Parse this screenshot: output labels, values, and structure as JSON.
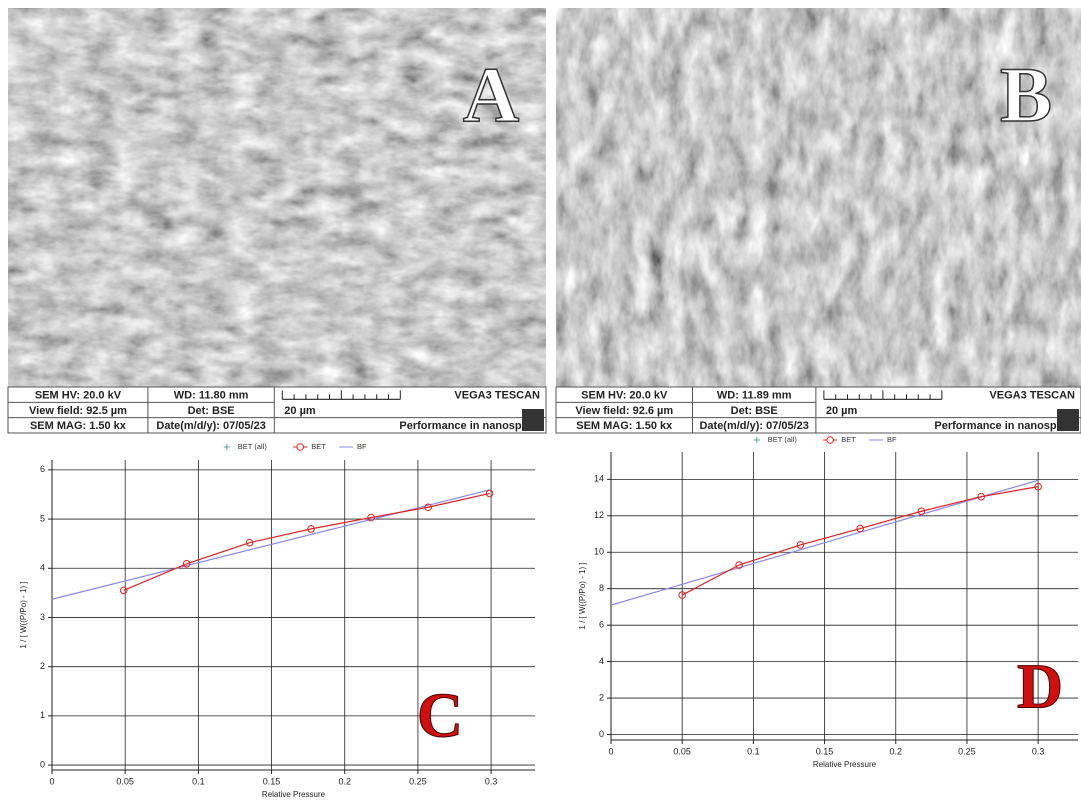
{
  "panels": [
    {
      "label": "A",
      "info": [
        [
          "SEM HV: 20.0 kV",
          "WD: 11.80 mm",
          "VEGA3 TESCAN"
        ],
        [
          "View field: 92.5 µm",
          "Det: BSE",
          "20 µm"
        ],
        [
          "SEM MAG: 1.50 kx",
          "Date(m/d/y): 07/05/23",
          "Performance in nanospace"
        ]
      ]
    },
    {
      "label": "B",
      "info": [
        [
          "SEM HV: 20.0 kV",
          "WD: 11.89 mm",
          "VEGA3 TESCAN"
        ],
        [
          "View field: 92.6 µm",
          "Det: BSE",
          "20 µm"
        ],
        [
          "SEM MAG: 1.50 kx",
          "Date(m/d/y): 07/05/23",
          "Performance in nanospace"
        ]
      ]
    }
  ],
  "chart_data": [
    {
      "type": "line",
      "label": "C",
      "xlabel": "Relative Pressure",
      "ylabel": "1 / [ W((P/Po) - 1) ]",
      "xlim": [
        0,
        0.33
      ],
      "ylim": [
        -0.1,
        6.2
      ],
      "xticks": [
        0,
        0.05,
        0.1,
        0.15,
        0.2,
        0.25,
        0.3
      ],
      "yticks": [
        0,
        1,
        2,
        3,
        4,
        5,
        6
      ],
      "grid": true,
      "series": [
        {
          "name": "BET (all)",
          "color": "#5aa0a0",
          "marker": "plus",
          "x": [],
          "y": []
        },
        {
          "name": "BET",
          "color": "#e0201e",
          "marker": "circle",
          "x": [
            0.049,
            0.092,
            0.135,
            0.177,
            0.218,
            0.257,
            0.299
          ],
          "y": [
            3.55,
            4.09,
            4.52,
            4.8,
            5.03,
            5.24,
            5.52
          ]
        },
        {
          "name": "BF",
          "color": "#8888ee",
          "marker": "none",
          "x": [
            0,
            0.3
          ],
          "y": [
            3.37,
            5.6
          ]
        }
      ]
    },
    {
      "type": "line",
      "label": "D",
      "xlabel": "Relative Pressure",
      "ylabel": "1 / [ W((P/Po) - 1) ]",
      "xlim": [
        0,
        0.328
      ],
      "ylim": [
        -0.3,
        15.5
      ],
      "xticks": [
        0,
        0.05,
        0.1,
        0.15,
        0.2,
        0.25,
        0.3
      ],
      "yticks": [
        0,
        2,
        4,
        6,
        8,
        10,
        12,
        14
      ],
      "grid": true,
      "series": [
        {
          "name": "BET (all)",
          "color": "#5aa0a0",
          "marker": "plus",
          "x": [],
          "y": []
        },
        {
          "name": "BET",
          "color": "#e0201e",
          "marker": "circle",
          "x": [
            0.05,
            0.09,
            0.133,
            0.175,
            0.218,
            0.26,
            0.3
          ],
          "y": [
            7.65,
            9.3,
            10.4,
            11.3,
            12.25,
            13.05,
            13.6
          ]
        },
        {
          "name": "BF",
          "color": "#8888ee",
          "marker": "none",
          "x": [
            0,
            0.3
          ],
          "y": [
            7.1,
            13.95
          ]
        }
      ]
    }
  ]
}
